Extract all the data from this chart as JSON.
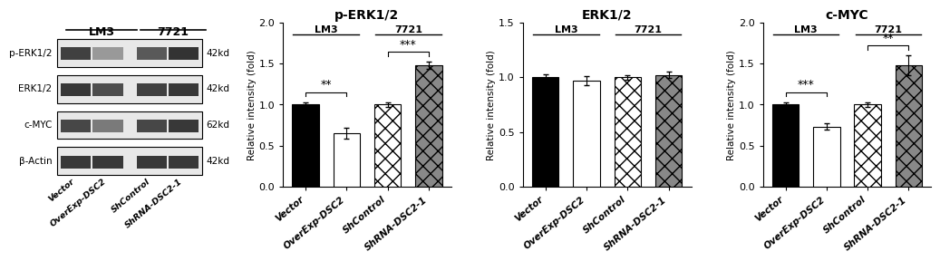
{
  "charts": [
    {
      "title": "p-ERK1/2",
      "ylim": [
        0.0,
        2.0
      ],
      "yticks": [
        0.0,
        0.5,
        1.0,
        1.5,
        2.0
      ],
      "ylabel": "Relative intensity (fold)",
      "values": [
        1.0,
        0.65,
        1.0,
        1.48
      ],
      "errors": [
        0.03,
        0.07,
        0.03,
        0.04
      ],
      "sig_lm3": "**",
      "sig_7721": "***"
    },
    {
      "title": "ERK1/2",
      "ylim": [
        0.0,
        1.5
      ],
      "yticks": [
        0.0,
        0.5,
        1.0,
        1.5
      ],
      "ylabel": "Relative intensity (fold)",
      "values": [
        1.0,
        0.97,
        1.0,
        1.02
      ],
      "errors": [
        0.03,
        0.04,
        0.02,
        0.03
      ],
      "sig_lm3": null,
      "sig_7721": null
    },
    {
      "title": "c-MYC",
      "ylim": [
        0.0,
        2.0
      ],
      "yticks": [
        0.0,
        0.5,
        1.0,
        1.5,
        2.0
      ],
      "ylabel": "Relative intensity (fold)",
      "values": [
        1.0,
        0.73,
        1.0,
        1.48
      ],
      "errors": [
        0.03,
        0.04,
        0.03,
        0.12
      ],
      "sig_lm3": "***",
      "sig_7721": "**"
    }
  ],
  "categories": [
    "Vector",
    "OverExp-DSC2",
    "ShControl",
    "ShRNA-DSC2-1"
  ],
  "bar_width": 0.65,
  "wb_labels": [
    "p-ERK1/2",
    "ERK1/2",
    "c-MYC",
    "β-Actin"
  ],
  "wb_kd": [
    "42kd",
    "42kd",
    "62kd",
    "42kd"
  ],
  "band_grays_perk": [
    0.25,
    0.6,
    0.35,
    0.2
  ],
  "band_grays_erk": [
    0.22,
    0.3,
    0.25,
    0.22
  ],
  "band_grays_cmyc": [
    0.28,
    0.48,
    0.28,
    0.22
  ],
  "band_grays_actin": [
    0.22,
    0.22,
    0.22,
    0.22
  ]
}
